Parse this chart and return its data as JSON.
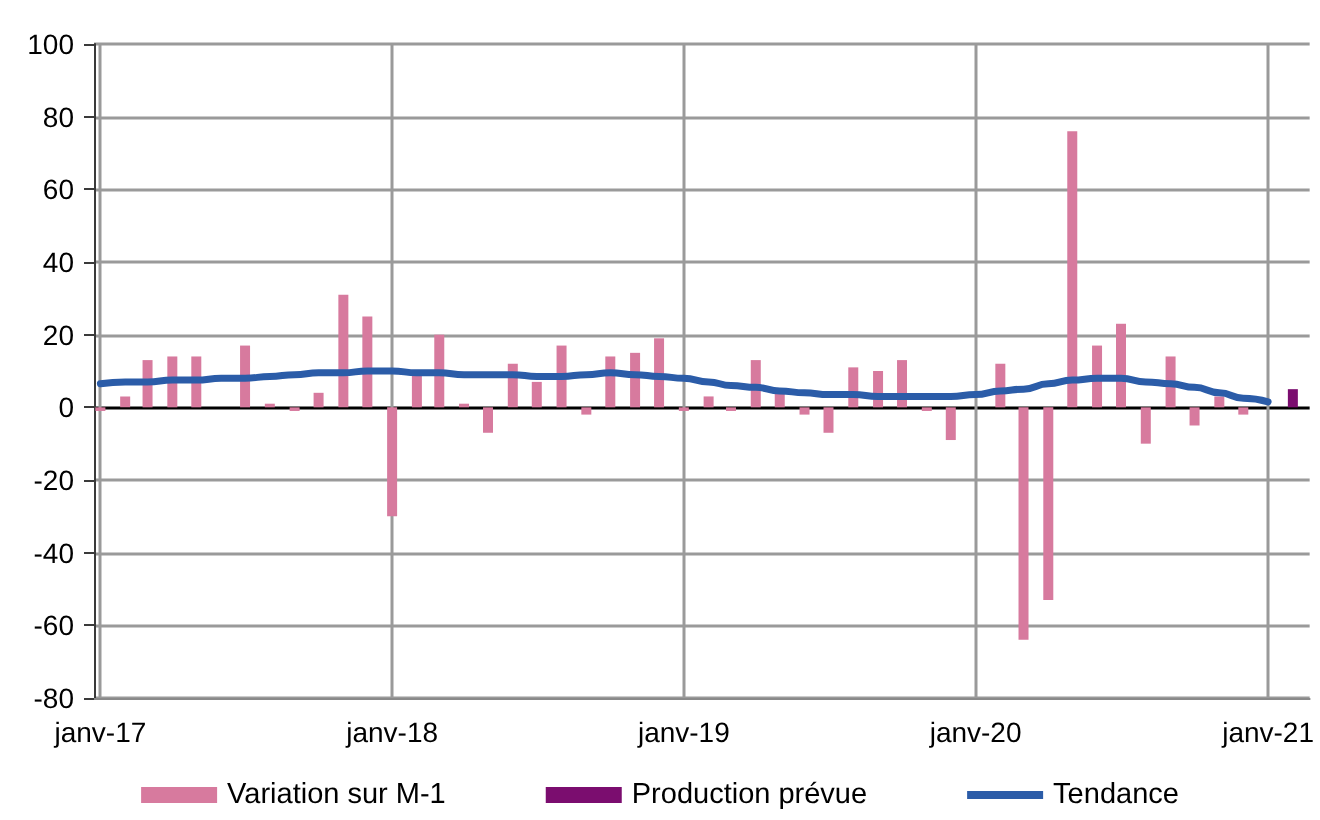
{
  "chart_data": {
    "type": "bar",
    "xlim": [
      "2016-12-24",
      "2021-02-22"
    ],
    "xticks": [
      {
        "value": "2017-01",
        "label": "janv-17"
      },
      {
        "value": "2018-01",
        "label": "janv-18"
      },
      {
        "value": "2019-01",
        "label": "janv-19"
      },
      {
        "value": "2020-01",
        "label": "janv-20"
      },
      {
        "value": "2021-01",
        "label": "janv-21"
      }
    ],
    "ylim": [
      -80,
      100
    ],
    "yticks": [
      -80,
      -60,
      -40,
      -20,
      0,
      20,
      40,
      60,
      80,
      100
    ],
    "grid": true,
    "legend": "bottom",
    "marker": "none",
    "series": [
      {
        "name": "Variation sur M-1",
        "color": "#d77a9e",
        "x": [
          "2017-01",
          "2017-02",
          "2017-03",
          "2017-04",
          "2017-05",
          "2017-06",
          "2017-07",
          "2017-08",
          "2017-09",
          "2017-10",
          "2017-11",
          "2017-12",
          "2018-01",
          "2018-02",
          "2018-03",
          "2018-04",
          "2018-05",
          "2018-06",
          "2018-07",
          "2018-08",
          "2018-09",
          "2018-10",
          "2018-11",
          "2018-12",
          "2019-01",
          "2019-02",
          "2019-03",
          "2019-04",
          "2019-05",
          "2019-06",
          "2019-07",
          "2019-08",
          "2019-09",
          "2019-10",
          "2019-11",
          "2019-12",
          "2020-01",
          "2020-02",
          "2020-03",
          "2020-04",
          "2020-05",
          "2020-06",
          "2020-07",
          "2020-08",
          "2020-09",
          "2020-10",
          "2020-11",
          "2020-12"
        ],
        "values": [
          -1,
          3,
          13,
          14,
          14,
          0,
          17,
          1,
          -1,
          4,
          31,
          25,
          -30,
          9,
          20,
          1,
          -7,
          12,
          7,
          17,
          -2,
          14,
          15,
          19,
          -1,
          3,
          -1,
          13,
          4,
          -2,
          -7,
          11,
          10,
          13,
          -1,
          -9,
          0,
          12,
          -64,
          -53,
          76,
          17,
          23,
          -10,
          14,
          -5,
          3,
          -2
        ]
      },
      {
        "name": "Production prévue",
        "color": "#7b0d6f",
        "x": [
          "2021-02"
        ],
        "values": [
          5
        ]
      },
      {
        "name": "Tendance",
        "type": "line",
        "color": "#2b5ca8",
        "x": [
          "2017-01",
          "2017-02",
          "2017-03",
          "2017-04",
          "2017-05",
          "2017-06",
          "2017-07",
          "2017-08",
          "2017-09",
          "2017-10",
          "2017-11",
          "2017-12",
          "2018-01",
          "2018-02",
          "2018-03",
          "2018-04",
          "2018-05",
          "2018-06",
          "2018-07",
          "2018-08",
          "2018-09",
          "2018-10",
          "2018-11",
          "2018-12",
          "2019-01",
          "2019-02",
          "2019-03",
          "2019-04",
          "2019-05",
          "2019-06",
          "2019-07",
          "2019-08",
          "2019-09",
          "2019-10",
          "2019-11",
          "2019-12",
          "2020-01",
          "2020-02",
          "2020-03",
          "2020-04",
          "2020-05",
          "2020-06",
          "2020-07",
          "2020-08",
          "2020-09",
          "2020-10",
          "2020-11",
          "2020-12",
          "2021-01"
        ],
        "values": [
          6.5,
          7,
          7,
          7.5,
          7.5,
          8,
          8,
          8.5,
          9,
          9.5,
          9.5,
          10,
          10,
          9.5,
          9.5,
          9,
          9,
          9,
          8.5,
          8.5,
          9,
          9.5,
          9,
          8.5,
          8,
          7,
          6,
          5.5,
          4.5,
          4,
          3.5,
          3.5,
          3,
          3,
          3,
          3,
          3.5,
          4.5,
          5,
          6.5,
          7.5,
          8,
          8,
          7,
          6.5,
          5.5,
          4,
          2.5,
          1.5
        ]
      }
    ]
  }
}
